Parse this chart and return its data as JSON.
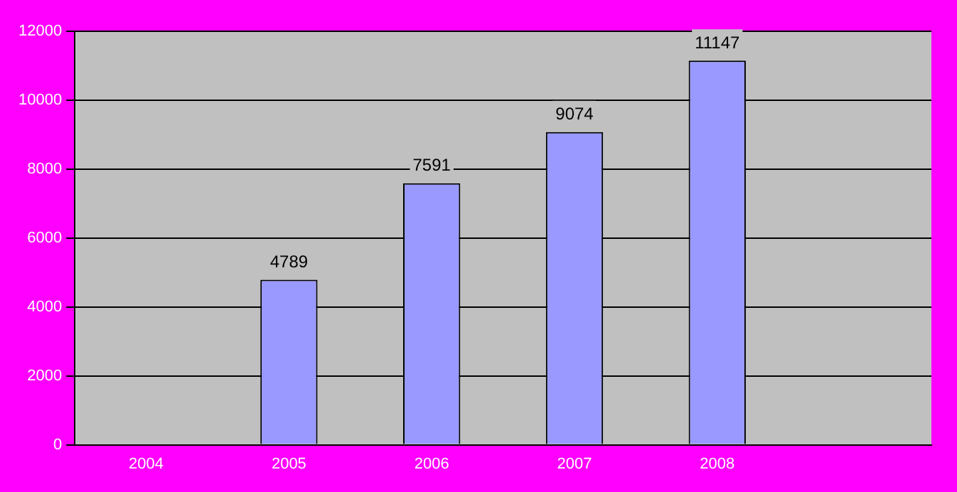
{
  "chart_data": {
    "type": "bar",
    "categories": [
      "2004",
      "2005",
      "2006",
      "2007",
      "2008",
      null
    ],
    "values": [
      null,
      4789,
      7591,
      9074,
      11147,
      null
    ],
    "color": "#9999ff",
    "ylim": [
      0,
      12000
    ],
    "yticks": [
      0,
      2000,
      4000,
      6000,
      8000,
      10000,
      12000
    ],
    "grid": "y",
    "legend": false,
    "data_labels": true
  }
}
